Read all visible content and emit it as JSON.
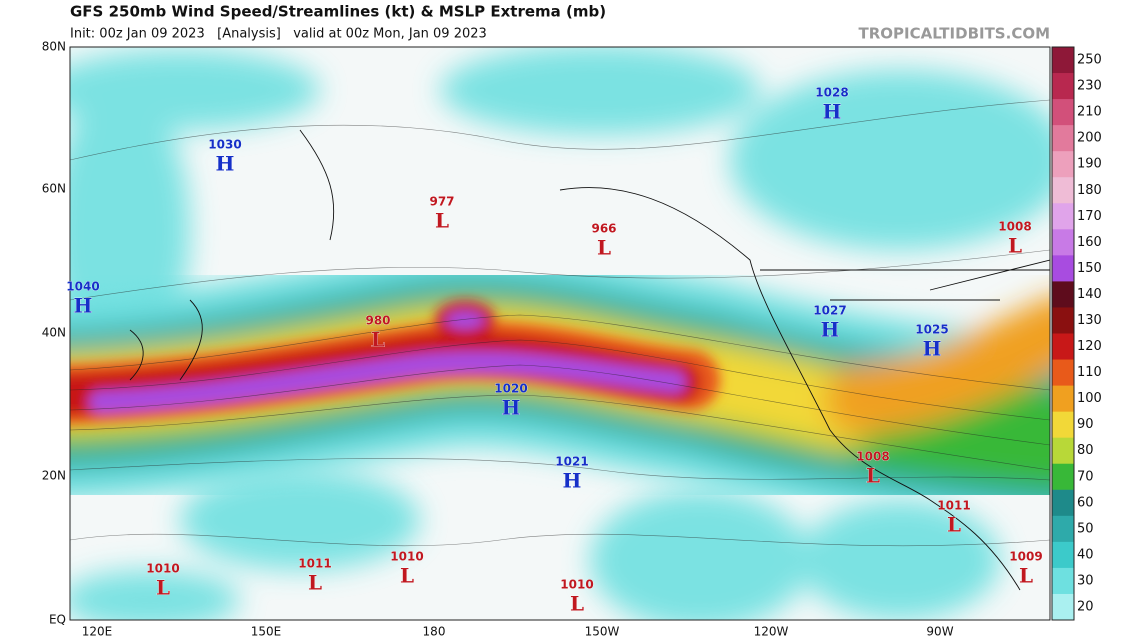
{
  "header": {
    "title": "GFS 250mb Wind Speed/Streamlines (kt) & MSLP Extrema (mb)",
    "subtitle": "Init: 00z Jan 09 2023   [Analysis]   valid at 00z Mon, Jan 09 2023",
    "source": "TROPICALTIDBITS.COM"
  },
  "map": {
    "lat_labels": [
      "80N",
      "60N",
      "40N",
      "20N",
      "EQ"
    ],
    "lon_labels": [
      "120E",
      "150E",
      "180",
      "150W",
      "120W",
      "90W"
    ],
    "centers": [
      {
        "type": "H",
        "pressure": 1030
      },
      {
        "type": "H",
        "pressure": 1028
      },
      {
        "type": "L",
        "pressure": 977
      },
      {
        "type": "L",
        "pressure": 966
      },
      {
        "type": "L",
        "pressure": 1008
      },
      {
        "type": "H",
        "pressure": 1040
      },
      {
        "type": "L",
        "pressure": 980
      },
      {
        "type": "H",
        "pressure": 1027
      },
      {
        "type": "H",
        "pressure": 1025
      },
      {
        "type": "H",
        "pressure": 1020
      },
      {
        "type": "H",
        "pressure": 1021
      },
      {
        "type": "L",
        "pressure": 1008
      },
      {
        "type": "L",
        "pressure": 1011
      },
      {
        "type": "L",
        "pressure": 1010
      },
      {
        "type": "L",
        "pressure": 1011
      },
      {
        "type": "L",
        "pressure": 1010
      },
      {
        "type": "L",
        "pressure": 1010
      },
      {
        "type": "L",
        "pressure": 1009
      }
    ]
  },
  "colorbar": {
    "labels": [
      250,
      230,
      210,
      200,
      190,
      180,
      170,
      160,
      150,
      140,
      130,
      120,
      110,
      100,
      90,
      80,
      70,
      60,
      50,
      40,
      30,
      20
    ],
    "colors": [
      "#8e1838",
      "#b8284f",
      "#d2507a",
      "#e27a9c",
      "#eda0bc",
      "#efbcd6",
      "#e0a4ea",
      "#c87ae6",
      "#a84ce0",
      "#5e0c1c",
      "#8a1010",
      "#c81818",
      "#e85a1a",
      "#f0a020",
      "#f2d838",
      "#b8d838",
      "#38b838",
      "#1e8a8a",
      "#2eaaaa",
      "#3ccaca",
      "#6ee0e0",
      "#aaf0f0"
    ]
  }
}
